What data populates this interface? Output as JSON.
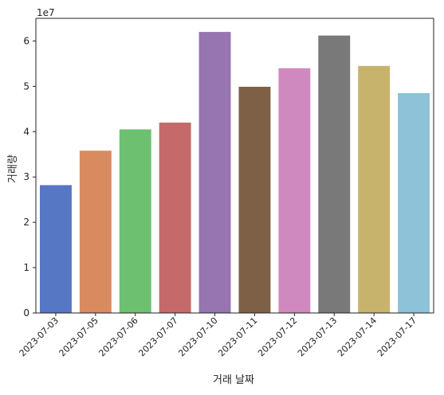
{
  "chart_data": {
    "type": "bar",
    "title": "",
    "xlabel": "거래 날짜",
    "ylabel": "거래량",
    "y_multiplier_label": "1e7",
    "ylim": [
      0,
      65000000
    ],
    "y_ticks": [
      0,
      10000000,
      20000000,
      30000000,
      40000000,
      50000000,
      60000000
    ],
    "y_tick_labels": [
      "0",
      "1",
      "2",
      "3",
      "4",
      "5",
      "6"
    ],
    "categories": [
      "2023-07-03",
      "2023-07-05",
      "2023-07-06",
      "2023-07-07",
      "2023-07-10",
      "2023-07-11",
      "2023-07-12",
      "2023-07-13",
      "2023-07-14",
      "2023-07-17"
    ],
    "values": [
      28200000,
      35800000,
      40500000,
      42000000,
      62000000,
      49900000,
      54000000,
      61200000,
      54500000,
      48500000
    ],
    "colors": [
      "#5677c3",
      "#d98b5f",
      "#6dc06f",
      "#c56a6a",
      "#9675b0",
      "#7d6046",
      "#d089bf",
      "#797979",
      "#c8b36d",
      "#8dc2d8"
    ],
    "grid": false,
    "legend": "none"
  }
}
